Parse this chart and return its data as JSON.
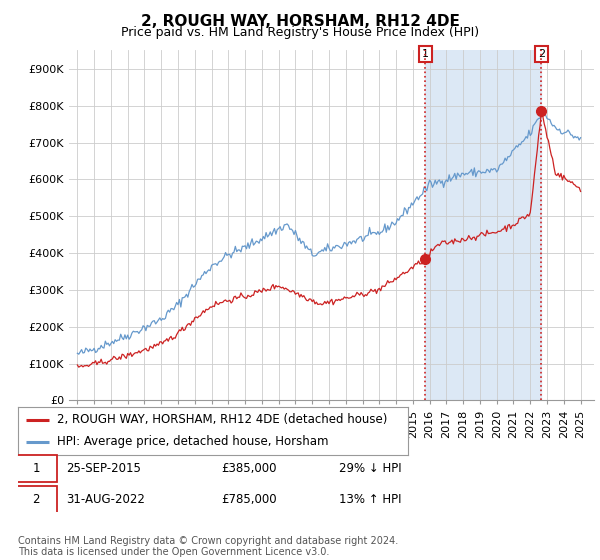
{
  "title": "2, ROUGH WAY, HORSHAM, RH12 4DE",
  "subtitle": "Price paid vs. HM Land Registry's House Price Index (HPI)",
  "hpi_label": "HPI: Average price, detached house, Horsham",
  "property_label": "2, ROUGH WAY, HORSHAM, RH12 4DE (detached house)",
  "footnote": "Contains HM Land Registry data © Crown copyright and database right 2024.\nThis data is licensed under the Open Government Licence v3.0.",
  "sale1_label": "25-SEP-2015",
  "sale1_price": "£385,000",
  "sale1_note": "29% ↓ HPI",
  "sale1_year": 2015.75,
  "sale1_value": 385000,
  "sale2_label": "31-AUG-2022",
  "sale2_price": "£785,000",
  "sale2_note": "13% ↑ HPI",
  "sale2_year": 2022.667,
  "sale2_value": 785000,
  "ylim": [
    0,
    950000
  ],
  "yticks": [
    0,
    100000,
    200000,
    300000,
    400000,
    500000,
    600000,
    700000,
    800000,
    900000
  ],
  "ytick_labels": [
    "£0",
    "£100K",
    "£200K",
    "£300K",
    "£400K",
    "£500K",
    "£600K",
    "£700K",
    "£800K",
    "£900K"
  ],
  "xlim_left": 1994.5,
  "xlim_right": 2025.8,
  "hpi_color": "#6699cc",
  "property_color": "#cc2222",
  "shade_color": "#dce8f5",
  "grid_color": "#cccccc",
  "background_color": "#ffffff",
  "title_fontsize": 11,
  "subtitle_fontsize": 9,
  "tick_fontsize": 8,
  "legend_fontsize": 8.5,
  "footnote_fontsize": 7
}
